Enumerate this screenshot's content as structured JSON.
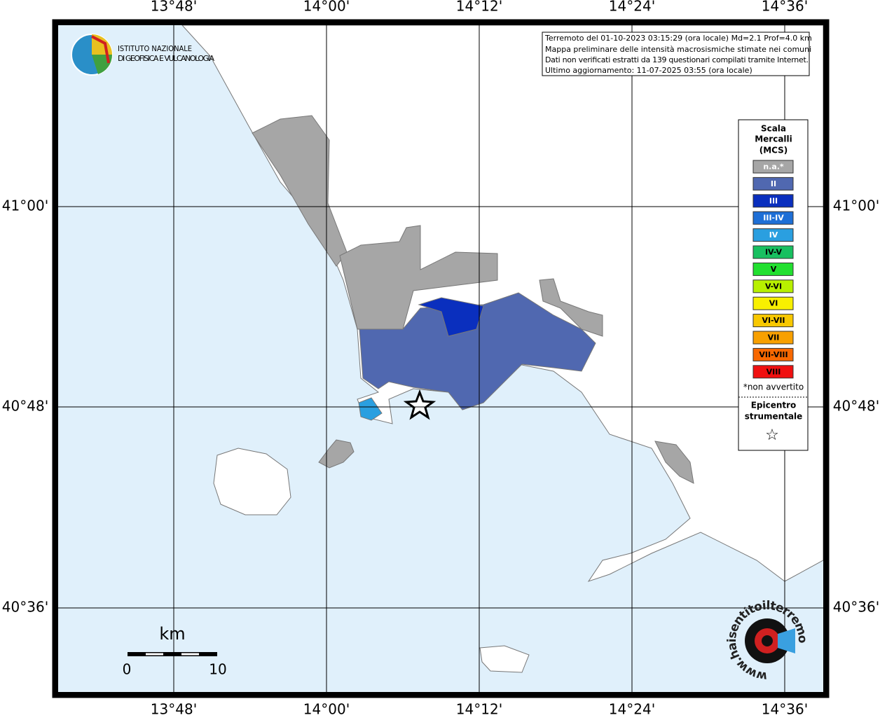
{
  "logo": {
    "line1": "ISTITUTO NAZIONALE",
    "line2": "DI GEOFISICA E VULCANOLOGIA"
  },
  "info_box": {
    "lines": [
      "Terremoto del 01-10-2023 03:15:29 (ora locale) Md=2.1 Prof=4.0 km",
      "Mappa preliminare delle intensità macrosismiche stimate nei comuni",
      "Dati non verificati estratti da 139 questionari compilati tramite Internet.",
      "Ultimo aggiornamento: 11-07-2025 03:55 (ora locale)"
    ]
  },
  "axes": {
    "lon_labels": [
      "13°48'",
      "14°00'",
      "14°12'",
      "14°24'",
      "14°36'"
    ],
    "lat_labels": [
      "41°00'",
      "40°48'",
      "40°36'"
    ]
  },
  "legend": {
    "title_lines": [
      "Scala",
      "Mercalli",
      "(MCS)"
    ],
    "items": [
      {
        "label": "n.a.*",
        "color": "#a6a6a6"
      },
      {
        "label": "II",
        "color": "#5068b0"
      },
      {
        "label": "III",
        "color": "#0a2fbe"
      },
      {
        "label": "III-IV",
        "color": "#1e6fd6"
      },
      {
        "label": "IV",
        "color": "#2a9fe0"
      },
      {
        "label": "IV-V",
        "color": "#18c060"
      },
      {
        "label": "V",
        "color": "#22e030"
      },
      {
        "label": "V-VI",
        "color": "#b8f000"
      },
      {
        "label": "VI",
        "color": "#f8f000"
      },
      {
        "label": "VI-VII",
        "color": "#f8c800"
      },
      {
        "label": "VII",
        "color": "#f8a000"
      },
      {
        "label": "VII-VIII",
        "color": "#f86800"
      },
      {
        "label": "VIII",
        "color": "#f01010"
      }
    ],
    "note": "*non avvertito",
    "epicenter_lines": [
      "Epicentro",
      "strumentale"
    ],
    "epicenter_symbol": "☆"
  },
  "scale_bar": {
    "unit": "km",
    "ticks": [
      0,
      10
    ]
  },
  "watermark": "www.haisentitoilterremoto.it"
}
